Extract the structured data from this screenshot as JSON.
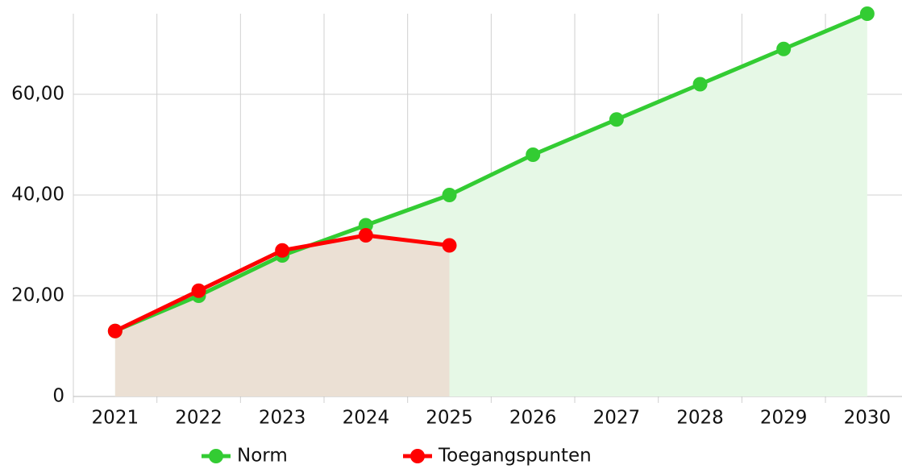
{
  "chart_data": {
    "type": "line",
    "categories": [
      "2021",
      "2022",
      "2023",
      "2024",
      "2025",
      "2026",
      "2027",
      "2028",
      "2029",
      "2030"
    ],
    "series": [
      {
        "name": "Norm",
        "color": "#33cc33",
        "fill": "#e6f8e6",
        "values": [
          13,
          20,
          28,
          34,
          40,
          48,
          55,
          62,
          69,
          76
        ]
      },
      {
        "name": "Toegangspunten",
        "color": "#ff0000",
        "fill": "#ebe0d4",
        "values": [
          13,
          21,
          29,
          32,
          30,
          null,
          null,
          null,
          null,
          null
        ]
      }
    ],
    "ylim": [
      0,
      76
    ],
    "yticks": [
      0,
      {
        "value": 20,
        "label": "20,00"
      },
      {
        "value": 40,
        "label": "40,00"
      },
      {
        "value": 60,
        "label": "60,00"
      }
    ],
    "grid": true,
    "legend": "bottom"
  }
}
